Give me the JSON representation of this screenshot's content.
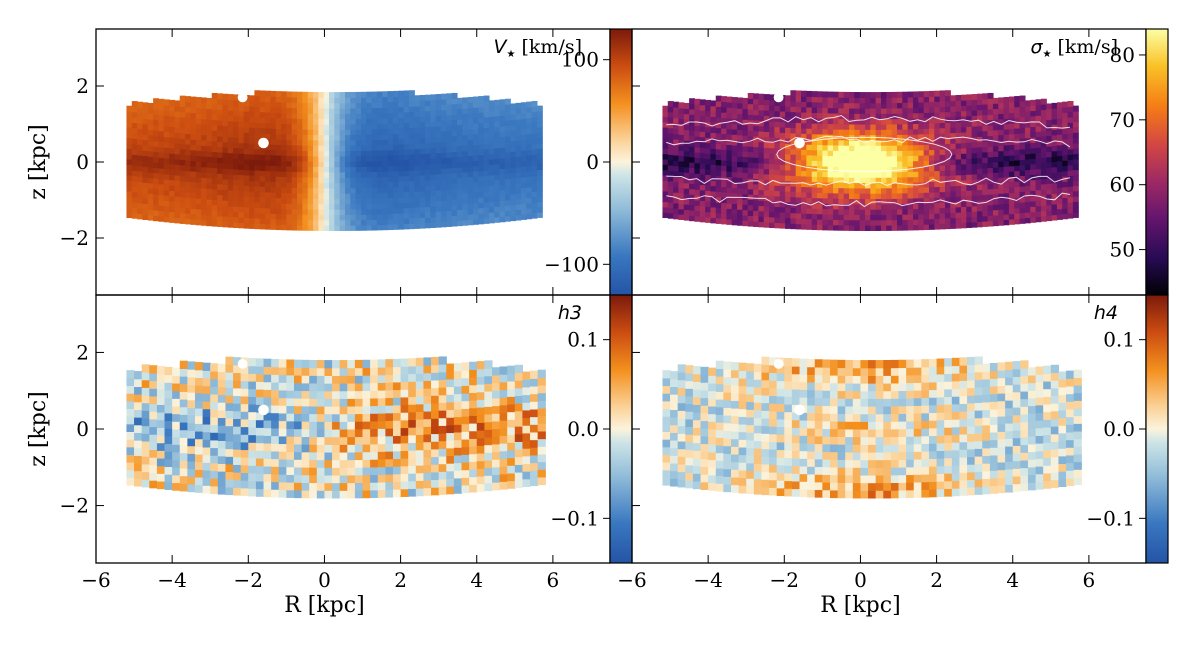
{
  "chart_data": {
    "type": "heatmap",
    "x_label": "R [kpc]",
    "y_label": "z [kpc]",
    "xlim": [
      -6,
      7.5
    ],
    "ylim": [
      -3.5,
      3.5
    ],
    "x_ticks": [
      -6,
      -4,
      -2,
      0,
      2,
      4,
      6
    ],
    "x_tick_labels": [
      "−6",
      "−4",
      "−2",
      "0",
      "2",
      "4",
      "6"
    ],
    "y_ticks": [
      -2,
      0,
      2
    ],
    "y_tick_labels": [
      "−2",
      "0",
      "2"
    ],
    "data_extent": {
      "r_min": -5.2,
      "r_max": 5.7,
      "z_half_edge": 1.45,
      "z_half_center": 1.8
    },
    "panels": [
      {
        "id": "velocity",
        "label_symbol": "V",
        "label_sub": "★",
        "label_unit": " [km/s]",
        "colormap": "red-orange-cream-blue",
        "colorbar": {
          "vmin": -130,
          "vmax": 130,
          "ticks": [
            100,
            0,
            -100
          ],
          "tick_labels": [
            "100",
            "0",
            "−100"
          ]
        },
        "field": "rotation velocity, positive on R<0, negative on R>0, peaking near the midplane",
        "contours": false
      },
      {
        "id": "dispersion",
        "label_symbol": "σ",
        "label_sub": "★",
        "label_unit": " [km/s]",
        "colormap": "inferno",
        "colorbar": {
          "vmin": 43,
          "vmax": 84,
          "ticks": [
            80,
            70,
            60,
            50
          ],
          "tick_labels": [
            "80",
            "70",
            "60",
            "50"
          ]
        },
        "field": "velocity dispersion, highest (~80) in central bulge, lowest (~45) in the outer midplane",
        "contours": true
      },
      {
        "id": "h3",
        "label_symbol": "h3",
        "label_sub": "",
        "label_unit": "",
        "colormap": "red-orange-cream-blue",
        "colorbar": {
          "vmin": -0.15,
          "vmax": 0.15,
          "ticks": [
            0.1,
            0.0,
            -0.1
          ],
          "tick_labels": [
            "0.1",
            "0.0",
            "−0.1"
          ]
        },
        "field": "h3 moment, anti-correlated with V (negative at R<0 midplane, positive at R>0 midplane)",
        "contours": false
      },
      {
        "id": "h4",
        "label_symbol": "h4",
        "label_sub": "",
        "label_unit": "",
        "colormap": "red-orange-cream-blue",
        "colorbar": {
          "vmin": -0.15,
          "vmax": 0.15,
          "ticks": [
            0.1,
            0.0,
            -0.1
          ],
          "tick_labels": [
            "0.1",
            "0.0",
            "−0.1"
          ]
        },
        "field": "h4 moment, positive above/below the disc and in the center, near zero elsewhere",
        "contours": false
      }
    ]
  }
}
